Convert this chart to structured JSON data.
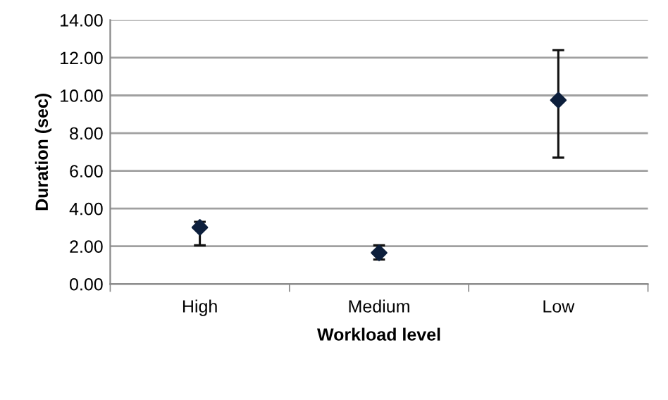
{
  "chart_data": {
    "type": "scatter",
    "xlabel": "Workload level",
    "ylabel": "Duration (sec)",
    "categories": [
      "High",
      "Medium",
      "Low"
    ],
    "series": [
      {
        "color": "#0d1f3c",
        "values": [
          3.0,
          1.65,
          9.75
        ],
        "errors": [
          [
            2.05,
            3.3
          ],
          [
            1.3,
            2.05
          ],
          [
            6.7,
            12.4
          ]
        ]
      }
    ],
    "ylim": [
      0,
      14
    ],
    "yticks": [
      {
        "value": 0,
        "label": "0.00"
      },
      {
        "value": 2,
        "label": "2.00"
      },
      {
        "value": 4,
        "label": "4.00"
      },
      {
        "value": 6,
        "label": "6.00"
      },
      {
        "value": 8,
        "label": "8.00"
      },
      {
        "value": 10,
        "label": "10.00"
      },
      {
        "value": 12,
        "label": "12.00"
      },
      {
        "value": 14,
        "label": "14.00"
      }
    ],
    "grid": "y",
    "marker": "diamond",
    "legend": false
  }
}
